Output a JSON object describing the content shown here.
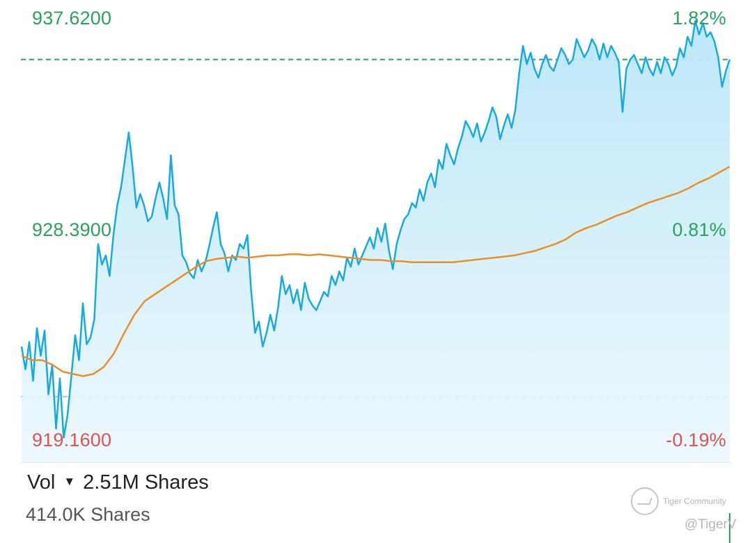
{
  "chart_data": {
    "type": "line",
    "y_axis_left": {
      "high": "937.6200",
      "mid": "928.3900",
      "low": "919.1600"
    },
    "y_axis_right": {
      "high": "1.82%",
      "mid": "0.81%",
      "low": "-0.19%"
    },
    "ylim": [
      919.16,
      937.62
    ],
    "reference_lines": [
      {
        "value": 935.8,
        "color": "#2aa25b",
        "style": "dashed"
      },
      {
        "value": 921.0,
        "color": "#b8b8b8",
        "style": "dashed"
      }
    ],
    "series": [
      {
        "color": "#17a9e1",
        "fill": true,
        "values": [
          923.2,
          922.2,
          923.4,
          921.7,
          924.0,
          922.8,
          923.9,
          921.1,
          922.4,
          919.6,
          921.8,
          919.2,
          920.2,
          921.9,
          923.7,
          922.6,
          925.1,
          923.3,
          923.6,
          924.4,
          927.7,
          926.8,
          927.2,
          926.3,
          928.1,
          929.4,
          930.2,
          931.4,
          932.6,
          931.1,
          929.3,
          929.9,
          929.4,
          928.7,
          928.9,
          929.7,
          930.4,
          929.7,
          928.8,
          931.6,
          929.4,
          929.0,
          927.2,
          926.9,
          926.4,
          926.2,
          927.0,
          926.5,
          926.9,
          927.6,
          928.4,
          929.1,
          927.7,
          927.3,
          926.5,
          927.2,
          927.0,
          927.7,
          927.5,
          928.1,
          925.6,
          923.8,
          924.3,
          923.2,
          923.8,
          924.6,
          923.9,
          924.9,
          926.3,
          925.5,
          925.9,
          925.1,
          925.7,
          924.8,
          926.0,
          925.3,
          925.0,
          924.8,
          925.2,
          925.6,
          925.4,
          926.3,
          925.9,
          926.5,
          926.1,
          927.1,
          926.7,
          927.5,
          926.8,
          927.2,
          927.6,
          928.0,
          927.5,
          928.4,
          927.8,
          928.6,
          927.4,
          926.6,
          927.7,
          928.3,
          928.8,
          929.0,
          929.5,
          929.3,
          930.1,
          929.6,
          930.4,
          930.8,
          930.2,
          931.4,
          931.0,
          932.1,
          931.6,
          931.2,
          931.9,
          932.4,
          933.1,
          932.8,
          932.4,
          933.0,
          932.2,
          932.6,
          933.1,
          933.7,
          933.3,
          932.3,
          932.9,
          933.4,
          932.8,
          933.6,
          935.2,
          936.4,
          935.6,
          936.1,
          935.4,
          935.0,
          935.6,
          936.0,
          935.5,
          935.3,
          935.8,
          936.3,
          936.0,
          935.6,
          935.8,
          936.7,
          936.3,
          935.9,
          936.2,
          936.7,
          936.4,
          935.8,
          936.5,
          935.9,
          936.4,
          936.1,
          935.7,
          933.5,
          935.4,
          935.8,
          936.0,
          935.6,
          935.2,
          935.9,
          935.4,
          935.1,
          935.7,
          935.2,
          935.9,
          935.6,
          935.1,
          935.5,
          936.3,
          935.9,
          936.8,
          936.4,
          937.5,
          936.9,
          937.4,
          936.8,
          937.0,
          936.6,
          935.9,
          934.6,
          935.3,
          935.8
        ]
      },
      {
        "color": "#eb8d24",
        "fill": false,
        "values": [
          922.8,
          922.6,
          922.6,
          922.4,
          922.1,
          922.0,
          921.9,
          922.0,
          922.3,
          922.9,
          923.8,
          924.6,
          925.2,
          925.5,
          925.8,
          926.1,
          926.4,
          926.7,
          926.95,
          927.05,
          927.1,
          927.15,
          927.1,
          927.15,
          927.2,
          927.2,
          927.25,
          927.25,
          927.2,
          927.25,
          927.2,
          927.15,
          927.1,
          927.05,
          927.0,
          927.0,
          926.95,
          926.95,
          926.9,
          926.9,
          926.9,
          926.9,
          926.9,
          926.95,
          927.0,
          927.05,
          927.1,
          927.15,
          927.2,
          927.3,
          927.4,
          927.55,
          927.7,
          927.9,
          928.2,
          928.4,
          928.55,
          928.75,
          928.95,
          929.1,
          929.3,
          929.5,
          929.65,
          929.8,
          929.95,
          930.15,
          930.4,
          930.6,
          930.85,
          931.1
        ]
      }
    ]
  },
  "volume": {
    "label": "Vol",
    "caret": "▼",
    "total": "2.51M Shares",
    "current": "414.0K Shares"
  },
  "watermark": {
    "brand": "Tiger Community",
    "handle": "@TigerV"
  }
}
